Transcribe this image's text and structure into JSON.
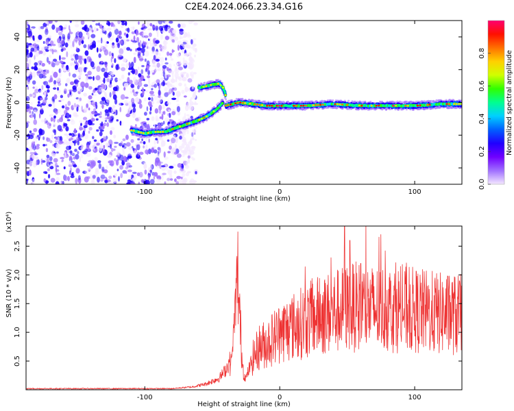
{
  "title": "C2E4.2024.066.23.34.G16",
  "chart_data": [
    {
      "type": "heatmap",
      "xlabel": "Height of straight line (km)",
      "ylabel": "Frequency (Hz)",
      "xlim": [
        -188,
        135
      ],
      "ylim": [
        -50,
        50
      ],
      "x_ticks": [
        -100,
        0,
        100
      ],
      "y_ticks": [
        -40,
        -20,
        0,
        20,
        40
      ],
      "colorbar": {
        "label": "Normalized spectral amplitude",
        "range": [
          0,
          1
        ],
        "ticks": [
          0.0,
          0.2,
          0.4,
          0.6,
          0.8
        ],
        "colors": [
          "#f4e8ff",
          "#a070ff",
          "#7000ff",
          "#2000ff",
          "#0060ff",
          "#00d0ff",
          "#00ff90",
          "#30ff00",
          "#d0ff00",
          "#ffd000",
          "#ff7000",
          "#ff1000",
          "#ff0070"
        ]
      },
      "ridges": [
        {
          "x": [
            -60,
            -54,
            -49,
            -45,
            -42,
            -40
          ],
          "y": [
            9,
            10,
            11,
            11.5,
            9,
            4
          ]
        },
        {
          "x": [
            -110,
            -100,
            -92,
            -85,
            -75,
            -64,
            -55,
            -48,
            -44,
            -42
          ],
          "y": [
            -17,
            -19,
            -18,
            -18,
            -15,
            -12,
            -9,
            -5,
            -2,
            0
          ]
        },
        {
          "x": [
            -40,
            -35,
            -30,
            -20,
            -10,
            0,
            20,
            40,
            60,
            80,
            100,
            120,
            135
          ],
          "y": [
            -2,
            -1,
            0,
            -1,
            -2,
            -2,
            -2,
            -1,
            -2,
            -2,
            -2,
            -1,
            -1
          ]
        }
      ],
      "noise_region_x": [
        -188,
        -72
      ]
    },
    {
      "type": "line",
      "xlabel": "Height of straight line (km)",
      "ylabel": "SNR (10 * v/v)",
      "y_scale_label": "(x10⁴)",
      "xlim": [
        -188,
        135
      ],
      "ylim": [
        0,
        2.85
      ],
      "x_ticks": [
        -100,
        0,
        100
      ],
      "y_ticks": [
        0.5,
        1.0,
        1.5,
        2.0,
        2.5
      ],
      "y_tick_labels": [
        "0.5",
        "1.0",
        "1.5",
        "2.0",
        "2.5"
      ],
      "color": "#ee3333",
      "envelope": {
        "x": [
          -188,
          -80,
          -65,
          -55,
          -45,
          -40,
          -35,
          -32,
          -30,
          -28,
          -25,
          -20,
          -15,
          -10,
          -5,
          0,
          10,
          20,
          30,
          40,
          50,
          60,
          70,
          80,
          90,
          100,
          110,
          120,
          135
        ],
        "y": [
          0.02,
          0.02,
          0.05,
          0.1,
          0.2,
          0.35,
          0.6,
          1.2,
          0.8,
          0.3,
          0.2,
          0.55,
          0.75,
          0.8,
          0.9,
          1.0,
          1.1,
          1.2,
          1.3,
          1.35,
          1.42,
          1.45,
          1.4,
          1.42,
          1.4,
          1.38,
          1.35,
          1.32,
          1.3
        ]
      },
      "spikes": [
        {
          "x": -31,
          "y": 2.75
        },
        {
          "x": 48,
          "y": 2.85
        },
        {
          "x": 38,
          "y": 2.3
        },
        {
          "x": 60,
          "y": 2.2
        },
        {
          "x": 52,
          "y": 2.6
        }
      ]
    }
  ]
}
